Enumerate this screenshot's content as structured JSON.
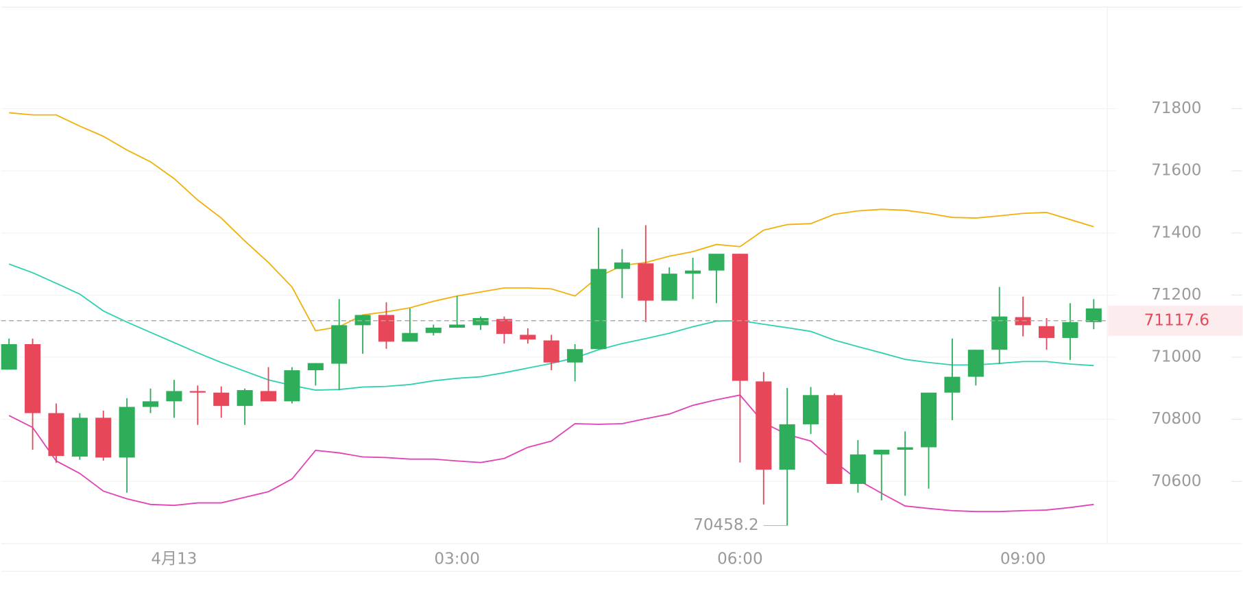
{
  "chart_data": {
    "type": "candlestick",
    "categories": [
      null,
      null,
      null,
      null,
      null,
      null,
      null,
      "4月13",
      null,
      null,
      null,
      null,
      null,
      null,
      null,
      null,
      null,
      null,
      null,
      "03:00",
      null,
      null,
      null,
      null,
      null,
      null,
      null,
      null,
      null,
      null,
      null,
      "06:00",
      null,
      null,
      null,
      null,
      null,
      null,
      null,
      null,
      null,
      null,
      null,
      "09:00",
      null,
      null,
      null
    ],
    "open": [
      70960,
      71042,
      70820,
      70680,
      70805,
      70677,
      70840,
      70858,
      70891,
      70886,
      70843,
      70891,
      70858,
      70958,
      70979,
      71103,
      71136,
      71050,
      71078,
      71095,
      71103,
      71123,
      71072,
      71054,
      70983,
      71026,
      71284,
      71302,
      71182,
      71269,
      71279,
      71333,
      70922,
      70638,
      70784,
      70878,
      70592,
      70687,
      70702,
      70710,
      70886,
      70937,
      71024,
      71129,
      71100,
      71062,
      71113
    ],
    "high": [
      71060,
      71060,
      70851,
      70820,
      70828,
      70868,
      70899,
      70927,
      70909,
      70906,
      70899,
      70968,
      70968,
      70981,
      71187,
      71136,
      71177,
      71157,
      71105,
      71197,
      71131,
      71131,
      71093,
      71072,
      71042,
      71417,
      71348,
      71425,
      71289,
      71320,
      71333,
      71333,
      70952,
      70901,
      70904,
      70883,
      70733,
      70702,
      70761,
      70886,
      71060,
      71024,
      71226,
      71195,
      71126,
      71174,
      71187
    ],
    "low": [
      70960,
      70702,
      70660,
      70670,
      70667,
      70564,
      70820,
      70805,
      70782,
      70805,
      70782,
      70858,
      70851,
      70909,
      70894,
      71011,
      71027,
      71050,
      71070,
      71095,
      71088,
      71044,
      71044,
      70958,
      70922,
      71026,
      71190,
      71113,
      71182,
      71187,
      71174,
      70661,
      70526,
      70458.2,
      70753,
      70592,
      70564,
      70539,
      70554,
      70577,
      70797,
      70909,
      70978,
      71067,
      71024,
      70991,
      71090
    ],
    "close": [
      71042,
      70820,
      70682,
      70805,
      70677,
      70840,
      70858,
      70891,
      70886,
      70843,
      70894,
      70858,
      70958,
      70981,
      71103,
      71136,
      71050,
      71078,
      71095,
      71105,
      71126,
      71075,
      71057,
      70983,
      71026,
      71284,
      71305,
      71182,
      71269,
      71279,
      71333,
      70924,
      70638,
      70784,
      70878,
      70592,
      70687,
      70702,
      70710,
      70886,
      70937,
      71024,
      71131,
      71103,
      71062,
      71113,
      71157
    ],
    "up_color": "#2eae5a",
    "down_color": "#e8475a",
    "bands": [
      {
        "color": "#f2b10a",
        "values": [
          71787,
          71780,
          71780,
          71744,
          71711,
          71667,
          71629,
          71575,
          71506,
          71448,
          71374,
          71305,
          71226,
          71085,
          71098,
          71136,
          71146,
          71159,
          71180,
          71197,
          71210,
          71223,
          71223,
          71220,
          71197,
          71259,
          71295,
          71305,
          71325,
          71340,
          71363,
          71356,
          71409,
          71427,
          71430,
          71460,
          71471,
          71476,
          71473,
          71463,
          71450,
          71448,
          71455,
          71463,
          71466,
          71443,
          71420
        ]
      },
      {
        "color": "#2fd0b0",
        "values": [
          71300,
          71272,
          71238,
          71203,
          71149,
          71113,
          71080,
          71047,
          71014,
          70983,
          70955,
          70927,
          70909,
          70894,
          70896,
          70904,
          70906,
          70912,
          70924,
          70932,
          70937,
          70950,
          70965,
          70980,
          70998,
          71024,
          71044,
          71060,
          71077,
          71098,
          71116,
          71118,
          71106,
          71095,
          71083,
          71055,
          71034,
          71014,
          70993,
          70983,
          70975,
          70975,
          70980,
          70986,
          70986,
          70978,
          70973
        ]
      },
      {
        "color": "#e042b8",
        "values": [
          70812,
          70774,
          70666,
          70626,
          70569,
          70544,
          70526,
          70523,
          70531,
          70531,
          70549,
          70567,
          70608,
          70700,
          70692,
          70679,
          70677,
          70672,
          70672,
          70666,
          70661,
          70674,
          70710,
          70730,
          70786,
          70784,
          70786,
          70802,
          70817,
          70845,
          70863,
          70878,
          70789,
          70751,
          70730,
          70664,
          70605,
          70562,
          70521,
          70513,
          70506,
          70503,
          70503,
          70506,
          70508,
          70516,
          70526
        ]
      }
    ],
    "last_price": 71117.6,
    "ylim": [
      70400,
      72127
    ],
    "yticks": [
      70600,
      70800,
      71000,
      71200,
      71400,
      71600,
      71800
    ],
    "grid": true
  }
}
